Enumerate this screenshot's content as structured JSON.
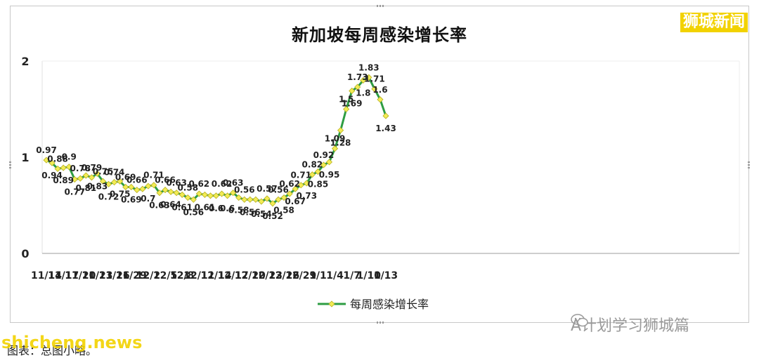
{
  "brand": "狮城新闻",
  "caption": "图表：总图小略。",
  "watermarks": {
    "source": "shicheng.news",
    "account": "A计划学习狮城篇"
  },
  "colors": {
    "line": "#2e9d43",
    "marker_fill": "#f2ec55",
    "marker_stroke": "#b9b020",
    "brand": "#f2d200"
  },
  "chart_data": {
    "type": "line",
    "title": "新加坡每周感染增长率",
    "xlabel": "",
    "ylabel": "",
    "ylim": [
      0,
      2
    ],
    "yticks": [
      0,
      1,
      2
    ],
    "grid": false,
    "legend": "bottom",
    "xtick_labels": [
      "11/14",
      "11/17",
      "11/20",
      "11/23",
      "11/26",
      "11/29",
      "12/2",
      "12/5",
      "12/8",
      "12/11",
      "12/14",
      "12/17",
      "12/20",
      "12/23",
      "12/26",
      "12/29",
      "1/1",
      "1/4",
      "1/7",
      "1/10",
      "1/13"
    ],
    "series": [
      {
        "name": "每周感染增长率",
        "x": [
          "11/14",
          "11/15",
          "11/16",
          "11/17",
          "11/18",
          "11/19",
          "11/20",
          "11/21",
          "11/22",
          "11/23",
          "11/24",
          "11/25",
          "11/26",
          "11/27",
          "11/28",
          "11/29",
          "11/30",
          "12/1",
          "12/2",
          "12/3",
          "12/4",
          "12/5",
          "12/6",
          "12/7",
          "12/8",
          "12/9",
          "12/10",
          "12/11",
          "12/12",
          "12/13",
          "12/14",
          "12/15",
          "12/16",
          "12/17",
          "12/18",
          "12/19",
          "12/20",
          "12/21",
          "12/22",
          "12/23",
          "12/24",
          "12/25",
          "12/26",
          "12/27",
          "12/28",
          "12/29",
          "12/30",
          "12/31",
          "1/1",
          "1/2",
          "1/3",
          "1/4",
          "1/5",
          "1/6",
          "1/7",
          "1/8",
          "1/9",
          "1/10",
          "1/11",
          "1/12",
          "1/13"
        ],
        "values": [
          0.97,
          0.94,
          0.88,
          0.89,
          0.9,
          0.77,
          0.78,
          0.81,
          0.79,
          0.83,
          0.75,
          0.72,
          0.74,
          0.75,
          0.69,
          0.69,
          0.66,
          0.67,
          0.7,
          0.71,
          0.63,
          0.66,
          0.64,
          0.63,
          0.61,
          0.58,
          0.56,
          0.62,
          0.61,
          0.6,
          0.6,
          0.62,
          0.6,
          0.63,
          0.58,
          0.56,
          0.56,
          0.56,
          0.54,
          0.57,
          0.52,
          0.56,
          0.58,
          0.62,
          0.67,
          0.71,
          0.73,
          0.82,
          0.85,
          0.92,
          0.95,
          1.09,
          1.28,
          1.5,
          1.69,
          1.73,
          1.8,
          1.83,
          1.71,
          1.6,
          1.43
        ],
        "labels": [
          "0.97",
          "0.94",
          "0.88",
          "0.89",
          "0.9",
          "0.77",
          "0.78",
          "0.81",
          "0.79",
          "0.83",
          "0.75",
          "0.72",
          "0.74",
          "0.75",
          "0.69",
          "0.69",
          "0.66",
          "",
          "0.7",
          "0.71",
          "0.63",
          "0.66",
          "0.64",
          "0.63",
          "0.61",
          "0.58",
          "0.56",
          "0.62",
          "0.61",
          "",
          "0.6",
          "0.62",
          "0.6",
          "0.63",
          "0.58",
          "0.56",
          "0.56",
          "",
          "0.54",
          "0.57",
          "0.52",
          "0.56",
          "0.58",
          "0.62",
          "0.67",
          "0.71",
          "0.73",
          "0.82",
          "0.85",
          "0.92",
          "0.95",
          "1.09",
          "1.28",
          "1.5",
          "1.69",
          "1.73",
          "1.8",
          "1.83",
          "1.71",
          "1.6",
          "1.43"
        ],
        "label_pos": [
          "a",
          "b",
          "a",
          "b",
          "a",
          "b",
          "a",
          "b",
          "a",
          "b",
          "a",
          "b",
          "a",
          "b",
          "a",
          "b",
          "a",
          "",
          "b",
          "a",
          "b",
          "a",
          "b",
          "a",
          "b",
          "a",
          "b",
          "a",
          "b",
          "",
          "b",
          "a",
          "b",
          "a",
          "b",
          "a",
          "b",
          "",
          "b",
          "a",
          "b",
          "a",
          "b",
          "a",
          "b",
          "a",
          "b",
          "a",
          "b",
          "a",
          "b",
          "a",
          "b",
          "a",
          "b",
          "a",
          "b",
          "a",
          "a",
          "a",
          "b"
        ]
      }
    ]
  }
}
